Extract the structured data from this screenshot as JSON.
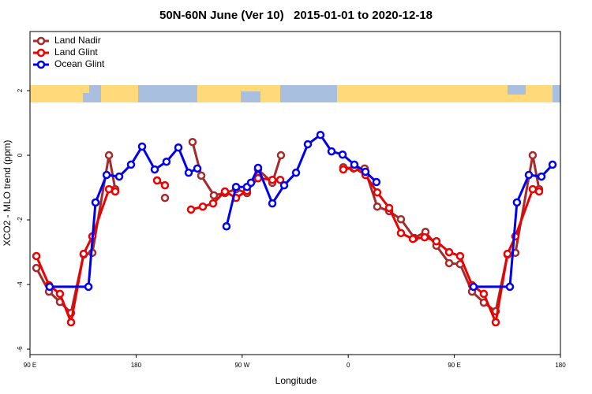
{
  "chart_data": {
    "type": "line",
    "title": "50N-60N June (Ver 10)   2015-01-01 to 2020-12-18",
    "xlabel": "Longitude",
    "ylabel": "XCO2 - MLO trend (ppm)",
    "xlim": [
      90,
      540
    ],
    "xticks": [
      {
        "value": 90,
        "label": "90 E"
      },
      180,
      {
        "value": 270,
        "label": "90 W"
      },
      {
        "value": 360,
        "label": "0"
      },
      {
        "value": 450,
        "label": "90 E"
      },
      {
        "value": 540,
        "label": "180"
      }
    ],
    "ylim": [
      -6.17,
      3.83
    ],
    "yticks": [
      -6,
      -4,
      -2,
      0,
      2
    ],
    "legend": "top-left",
    "series": [
      {
        "name": "Land Nadir",
        "color": "#a52a2a",
        "x": [
          95.4,
          106.1,
          115.4,
          124.8,
          135.5,
          142.9,
          157,
          162.3,
          null,
          204.5,
          null,
          227.9,
          235.3,
          246,
          255.4,
          264.8,
          274.1,
          283.5,
          295.6,
          302.9,
          null,
          355.8,
          364.5,
          373.9,
          384.6,
          394.7,
          404.7,
          416.1,
          425.5,
          434.8,
          445.6,
          454.9,
          465,
          475,
          485.1,
          495.1,
          501.8,
          516.5,
          521.9
        ],
        "values": [
          -3.49,
          -4.22,
          -4.54,
          -4.88,
          -3.07,
          -3.02,
          0,
          -1.05,
          null,
          -1.32,
          null,
          0.41,
          -0.63,
          -1.24,
          -1.17,
          -1.05,
          -1.17,
          -0.44,
          -0.85,
          0,
          null,
          -0.37,
          -0.41,
          -0.41,
          -1.59,
          -1.73,
          -1.98,
          -2.56,
          -2.37,
          -2.8,
          -3.34,
          -3.37,
          -4.22,
          -4.56,
          -4.83,
          -3.07,
          -3.02,
          0,
          -1.05
        ]
      },
      {
        "name": "Land Glint",
        "color": "#ee0000",
        "x": [
          95.4,
          106.1,
          115.4,
          124.8,
          135.5,
          142.9,
          157,
          162.3,
          null,
          197.8,
          204.5,
          null,
          226.6,
          236.6,
          245.3,
          255.4,
          264.8,
          274.1,
          283.5,
          295.6,
          302.3,
          null,
          355.8,
          365.2,
          374.6,
          384.6,
          394.7,
          404.7,
          414.8,
          424.8,
          434.8,
          445.6,
          454.9,
          465,
          475,
          485.1,
          495.1,
          501.8,
          516.5,
          521.9
        ],
        "values": [
          -3.12,
          -4.02,
          -4.29,
          -5.17,
          -3.05,
          -2.51,
          -1.05,
          -1.12,
          null,
          -0.78,
          -0.93,
          null,
          -1.68,
          -1.59,
          -1.49,
          -1.12,
          -1.32,
          -1.1,
          -0.71,
          -0.76,
          -0.76,
          null,
          -0.44,
          -0.39,
          -0.61,
          -1.15,
          -1.63,
          -2.41,
          -2.59,
          -2.54,
          -2.66,
          -3,
          -3.12,
          -4.02,
          -4.29,
          -5.17,
          -3.05,
          -2.51,
          -1.05,
          -1.12
        ]
      },
      {
        "name": "Ocean Glint",
        "color": "#0000ee",
        "x": [
          106.7,
          139.6,
          145.6,
          155,
          165.7,
          175.7,
          185.1,
          195.8,
          205.8,
          215.9,
          224.6,
          232,
          null,
          256.7,
          264.8,
          274.1,
          277.5,
          283.5,
          295.6,
          305.6,
          315.7,
          325.7,
          336.4,
          345.8,
          355.2,
          365.2,
          374.6,
          383.9,
          null,
          466.3,
          497.1,
          503.1,
          513.2,
          523.9,
          533.3
        ],
        "values": [
          -4.07,
          -4.07,
          -1.46,
          -0.61,
          -0.66,
          -0.29,
          0.27,
          -0.44,
          -0.2,
          0.24,
          -0.54,
          -0.41,
          null,
          -2.2,
          -0.98,
          -0.98,
          -0.85,
          -0.39,
          -1.49,
          -0.93,
          -0.54,
          0.34,
          0.63,
          0.12,
          0.02,
          -0.29,
          -0.51,
          -0.83,
          null,
          -4.07,
          -4.07,
          -1.46,
          -0.61,
          -0.66,
          -0.29
        ]
      }
    ]
  }
}
